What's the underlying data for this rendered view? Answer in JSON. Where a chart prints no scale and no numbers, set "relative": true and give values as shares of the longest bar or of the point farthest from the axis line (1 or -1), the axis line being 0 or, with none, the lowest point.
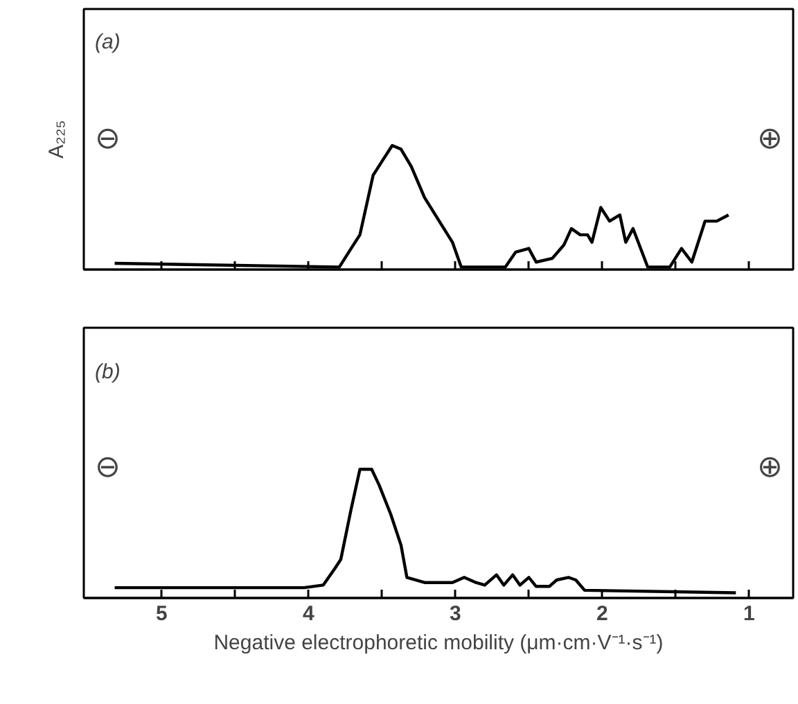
{
  "chart_data": [
    {
      "type": "line",
      "relative": true,
      "ylabel": "A₂₂₅",
      "annotations": [
        "(a)",
        "⊖",
        "⊕"
      ],
      "tick_labels": false,
      "grid": false,
      "marker": "none",
      "line_style": "solid",
      "xlim": [
        5.53,
        0.7
      ],
      "xticks": [
        5,
        {
          "value": 4.5,
          "label": null
        },
        4,
        {
          "value": 3.5,
          "label": null
        },
        3,
        {
          "value": 2.5,
          "label": null
        },
        2,
        {
          "value": 1.5,
          "label": null
        },
        1
      ],
      "series": [
        {
          "color": "#000000",
          "x": [
            5.32,
            3.79,
            3.71,
            3.65,
            3.56,
            3.49,
            3.43,
            3.37,
            3.3,
            3.21,
            3.11,
            3.02,
            2.96,
            2.66,
            2.59,
            2.5,
            2.45,
            2.34,
            2.26,
            2.21,
            2.15,
            2.1,
            2.07,
            2.01,
            1.95,
            1.88,
            1.84,
            1.79,
            1.69,
            1.54,
            1.46,
            1.39,
            1.3,
            1.22,
            1.14
          ],
          "values": [
            0.05,
            0.02,
            0.17,
            0.28,
            0.76,
            0.89,
            1.0,
            0.97,
            0.83,
            0.58,
            0.39,
            0.22,
            0.02,
            0.02,
            0.14,
            0.17,
            0.06,
            0.09,
            0.2,
            0.33,
            0.28,
            0.28,
            0.22,
            0.5,
            0.39,
            0.44,
            0.22,
            0.33,
            0.02,
            0.02,
            0.17,
            0.06,
            0.39,
            0.39,
            0.44
          ]
        }
      ]
    },
    {
      "type": "line",
      "relative": true,
      "xlabel": "Negative electrophoretic mobility (μm·cm·V⁻¹·s⁻¹)",
      "annotations": [
        "(b)",
        "⊖",
        "⊕"
      ],
      "tick_labels": "x",
      "grid": false,
      "marker": "none",
      "line_style": "solid",
      "xlim": [
        5.53,
        0.7
      ],
      "xticks": [
        5,
        {
          "value": 4.5,
          "label": null
        },
        4,
        {
          "value": 3.5,
          "label": null
        },
        3,
        {
          "value": 2.5,
          "label": null
        },
        2,
        {
          "value": 1.5,
          "label": null
        },
        1
      ],
      "series": [
        {
          "color": "#000000",
          "x": [
            5.32,
            4.03,
            3.9,
            3.82,
            3.78,
            3.71,
            3.65,
            3.57,
            3.52,
            3.44,
            3.37,
            3.33,
            3.21,
            3.02,
            2.94,
            2.86,
            2.8,
            2.72,
            2.67,
            2.61,
            2.56,
            2.5,
            2.45,
            2.36,
            2.31,
            2.23,
            2.18,
            2.12,
            1.09
          ],
          "values": [
            0.08,
            0.08,
            0.1,
            0.23,
            0.3,
            0.69,
            1.0,
            1.0,
            0.88,
            0.65,
            0.41,
            0.16,
            0.12,
            0.12,
            0.16,
            0.12,
            0.1,
            0.18,
            0.1,
            0.18,
            0.1,
            0.16,
            0.09,
            0.09,
            0.14,
            0.16,
            0.14,
            0.06,
            0.04
          ]
        }
      ]
    }
  ]
}
